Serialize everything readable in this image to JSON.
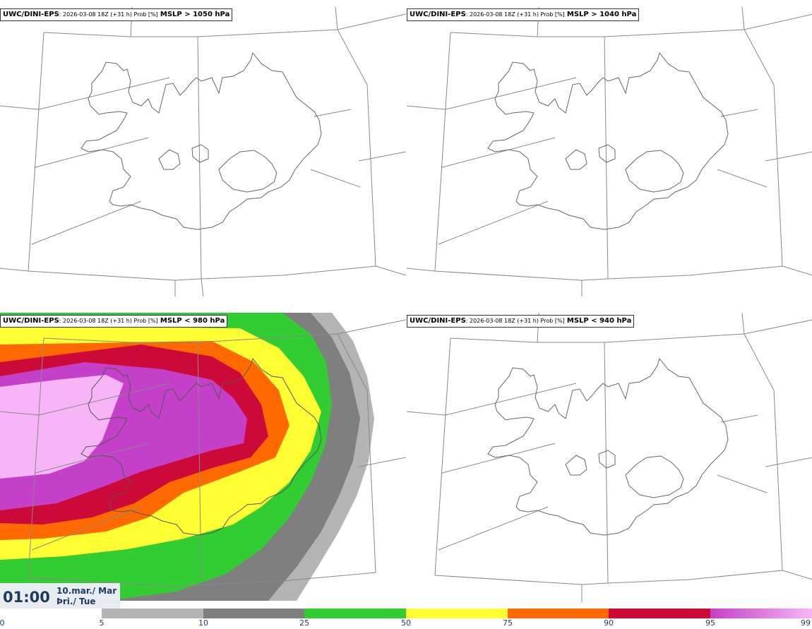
{
  "panels": [
    {
      "model": "UWC/DINI-EPS",
      "meta": ": 2026-03-08 18Z (+31 h) Prob [%]",
      "threshold": "MSLP > 1050 hPa"
    },
    {
      "model": "UWC/DINI-EPS",
      "meta": ": 2026-03-08 18Z (+31 h) Prob [%]",
      "threshold": "MSLP > 1040 hPa"
    },
    {
      "model": "UWC/DINI-EPS",
      "meta": ": 2026-03-08 18Z (+31 h) Prob [%]",
      "threshold": "MSLP < 980 hPa"
    },
    {
      "model": "UWC/DINI-EPS",
      "meta": ": 2026-03-08 18Z (+31 h) Prob [%]",
      "threshold": "MSLP < 940 hPa"
    }
  ],
  "valid_time": {
    "time": "01:00",
    "date_line1": "10.mar./ Mar",
    "date_line2": "Þri./ Tue"
  },
  "colorbar": {
    "ticks": [
      "0",
      "5",
      "10",
      "25",
      "50",
      "75",
      "90",
      "95",
      "99"
    ],
    "colors": [
      "#ffffff",
      "#b4b4b4",
      "#7f7f7f",
      "#32cd32",
      "#ffff33",
      "#ff6a00",
      "#cc0a3a",
      "#c540c8",
      "#f7b5f7"
    ]
  },
  "colors": {
    "coast": "#666666",
    "grid": "#888888"
  }
}
